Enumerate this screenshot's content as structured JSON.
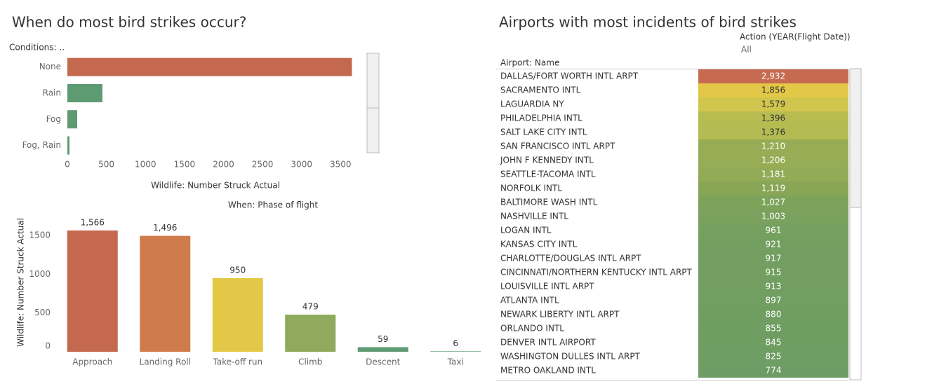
{
  "chart_data": [
    {
      "type": "bar",
      "orientation": "horizontal",
      "title": "When do most bird strikes occur?",
      "y_label": "Conditions: ..",
      "x_label": "Wildlife: Number Struck Actual",
      "categories": [
        "None",
        "Rain",
        "Fog",
        "Fog, Rain"
      ],
      "values": [
        3645,
        449,
        126,
        27
      ],
      "colors": [
        "#c4694f",
        "#5e9a72",
        "#5e9a72",
        "#5e9a72"
      ],
      "xlim": [
        0,
        3650
      ],
      "xticks": [
        0,
        500,
        1000,
        1500,
        2000,
        2500,
        3000,
        3500
      ]
    },
    {
      "type": "bar",
      "orientation": "vertical",
      "title": "When: Phase of flight",
      "y_label": "Wildlife: Number Struck Actual",
      "categories": [
        "Approach",
        "Landing Roll",
        "Take-off run",
        "Climb",
        "Descent",
        "Taxi"
      ],
      "values": [
        1566,
        1496,
        950,
        479,
        59,
        6
      ],
      "value_labels": [
        "1,566",
        "1,496",
        "950",
        "479",
        "59",
        "6"
      ],
      "colors": [
        "#c4694f",
        "#cf7b4c",
        "#e2c846",
        "#8faa5c",
        "#5e9a72",
        "#5e9a72"
      ],
      "ylim": [
        0,
        1800
      ],
      "yticks": [
        0,
        500,
        1000,
        1500
      ]
    },
    {
      "type": "highlight_table",
      "title": "Airports with most incidents of bird strikes",
      "filter_label": "Action (YEAR(Flight Date))",
      "filter_value": "All",
      "row_header": "Airport: Name",
      "categories": [
        "DALLAS/FORT WORTH INTL ARPT",
        "SACRAMENTO INTL",
        "LAGUARDIA NY",
        "PHILADELPHIA INTL",
        "SALT LAKE CITY INTL",
        "SAN FRANCISCO INTL ARPT",
        "JOHN F KENNEDY INTL",
        "SEATTLE-TACOMA INTL",
        "NORFOLK INTL",
        "BALTIMORE WASH INTL",
        "NASHVILLE INTL",
        "LOGAN INTL",
        "KANSAS CITY INTL",
        "CHARLOTTE/DOUGLAS INTL ARPT",
        "CINCINNATI/NORTHERN KENTUCKY INTL ARPT",
        "LOUISVILLE INTL ARPT",
        "ATLANTA INTL",
        "NEWARK LIBERTY INTL ARPT",
        "ORLANDO INTL",
        "DENVER INTL AIRPORT",
        "WASHINGTON DULLES INTL ARPT",
        "METRO OAKLAND INTL"
      ],
      "values": [
        2932,
        1856,
        1579,
        1396,
        1376,
        1210,
        1206,
        1181,
        1119,
        1027,
        1003,
        961,
        921,
        917,
        915,
        913,
        897,
        880,
        855,
        845,
        825,
        774
      ],
      "value_labels": [
        "2,932",
        "1,856",
        "1,579",
        "1,396",
        "1,376",
        "1,210",
        "1,206",
        "1,181",
        "1,119",
        "1,027",
        "1,003",
        "961",
        "921",
        "917",
        "915",
        "913",
        "897",
        "880",
        "855",
        "845",
        "825",
        "774"
      ],
      "colors": [
        "#c66b50",
        "#e2c846",
        "#d0c64e",
        "#b7bc51",
        "#b3bb52",
        "#97ad55",
        "#96ad56",
        "#92ab57",
        "#88a656",
        "#7da35b",
        "#7aa15d",
        "#76a05f",
        "#73a060",
        "#729f61",
        "#729f61",
        "#729f61",
        "#719f62",
        "#709e62",
        "#6f9e63",
        "#6f9e63",
        "#6e9e63",
        "#6d9d64"
      ]
    }
  ]
}
